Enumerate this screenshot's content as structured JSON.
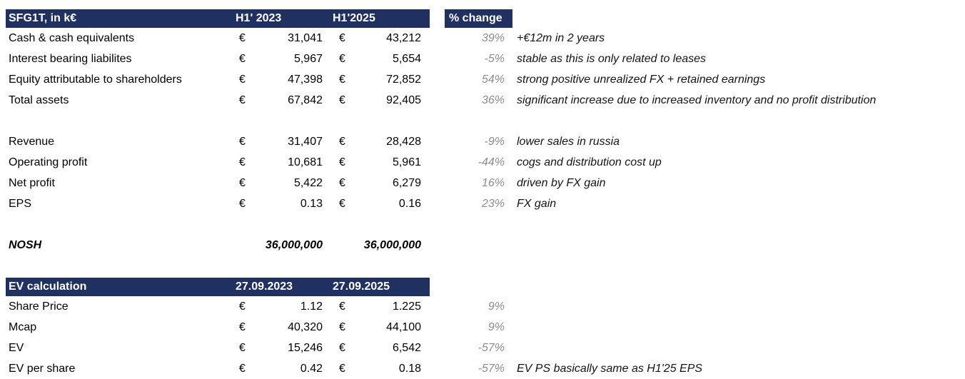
{
  "colors": {
    "header_bg": "#1F3061",
    "header_text": "#FFFFFF",
    "pct_text": "#8C8C8C",
    "note_text": "#141414",
    "body_text": "#000000",
    "sheet_bg": "#FFFFFF"
  },
  "table1": {
    "title": "SFG1T, in k€",
    "col1_header": "H1' 2023",
    "col2_header": "H1'2025",
    "pct_header": "% change",
    "rows": [
      {
        "label": "Cash & cash equivalents",
        "cur1": "€",
        "v1": "31,041",
        "cur2": "€",
        "v2": "43,212",
        "pct": "39%",
        "note": "+€12m in 2 years"
      },
      {
        "label": "Interest bearing liabilites",
        "cur1": "€",
        "v1": "5,967",
        "cur2": "€",
        "v2": "5,654",
        "pct": "-5%",
        "note": "stable as this is only related to leases"
      },
      {
        "label": "Equity attributable to shareholders",
        "cur1": "€",
        "v1": "47,398",
        "cur2": "€",
        "v2": "72,852",
        "pct": "54%",
        "note": "strong positive unrealized FX + retained earnings"
      },
      {
        "label": "Total assets",
        "cur1": "€",
        "v1": "67,842",
        "cur2": "€",
        "v2": "92,405",
        "pct": "36%",
        "note": "significant increase due to increased inventory and no profit distribution"
      },
      {
        "blank": true
      },
      {
        "label": "Revenue",
        "cur1": "€",
        "v1": "31,407",
        "cur2": "€",
        "v2": "28,428",
        "pct": "-9%",
        "note": "lower sales in russia"
      },
      {
        "label": "Operating profit",
        "cur1": "€",
        "v1": "10,681",
        "cur2": "€",
        "v2": "5,961",
        "pct": "-44%",
        "note": "cogs and distribution cost up"
      },
      {
        "label": "Net profit",
        "cur1": "€",
        "v1": "5,422",
        "cur2": "€",
        "v2": "6,279",
        "pct": "16%",
        "note": "driven by FX gain"
      },
      {
        "label": "EPS",
        "cur1": "€",
        "v1": "0.13",
        "cur2": "€",
        "v2": "0.16",
        "pct": "23%",
        "note": "FX gain"
      },
      {
        "blank": true
      },
      {
        "label": "NOSH",
        "cur1": "",
        "v1": "36,000,000",
        "cur2": "",
        "v2": "36,000,000",
        "pct": "",
        "note": "",
        "emphasis": true
      },
      {
        "blank": true
      }
    ]
  },
  "table2": {
    "title": "EV calculation",
    "col1_header": "27.09.2023",
    "col2_header": "27.09.2025",
    "rows": [
      {
        "label": "Share Price",
        "cur1": "€",
        "v1": "1.12",
        "cur2": "€",
        "v2": "1.225",
        "pct": "9%",
        "note": ""
      },
      {
        "label": "Mcap",
        "cur1": "€",
        "v1": "40,320",
        "cur2": "€",
        "v2": "44,100",
        "pct": "9%",
        "note": ""
      },
      {
        "label": "EV",
        "cur1": "€",
        "v1": "15,246",
        "cur2": "€",
        "v2": "6,542",
        "pct": "-57%",
        "note": ""
      },
      {
        "label": "EV per share",
        "cur1": "€",
        "v1": "0.42",
        "cur2": "€",
        "v2": "0.18",
        "pct": "-57%",
        "note": "EV PS basically same as H1'25 EPS"
      }
    ]
  }
}
